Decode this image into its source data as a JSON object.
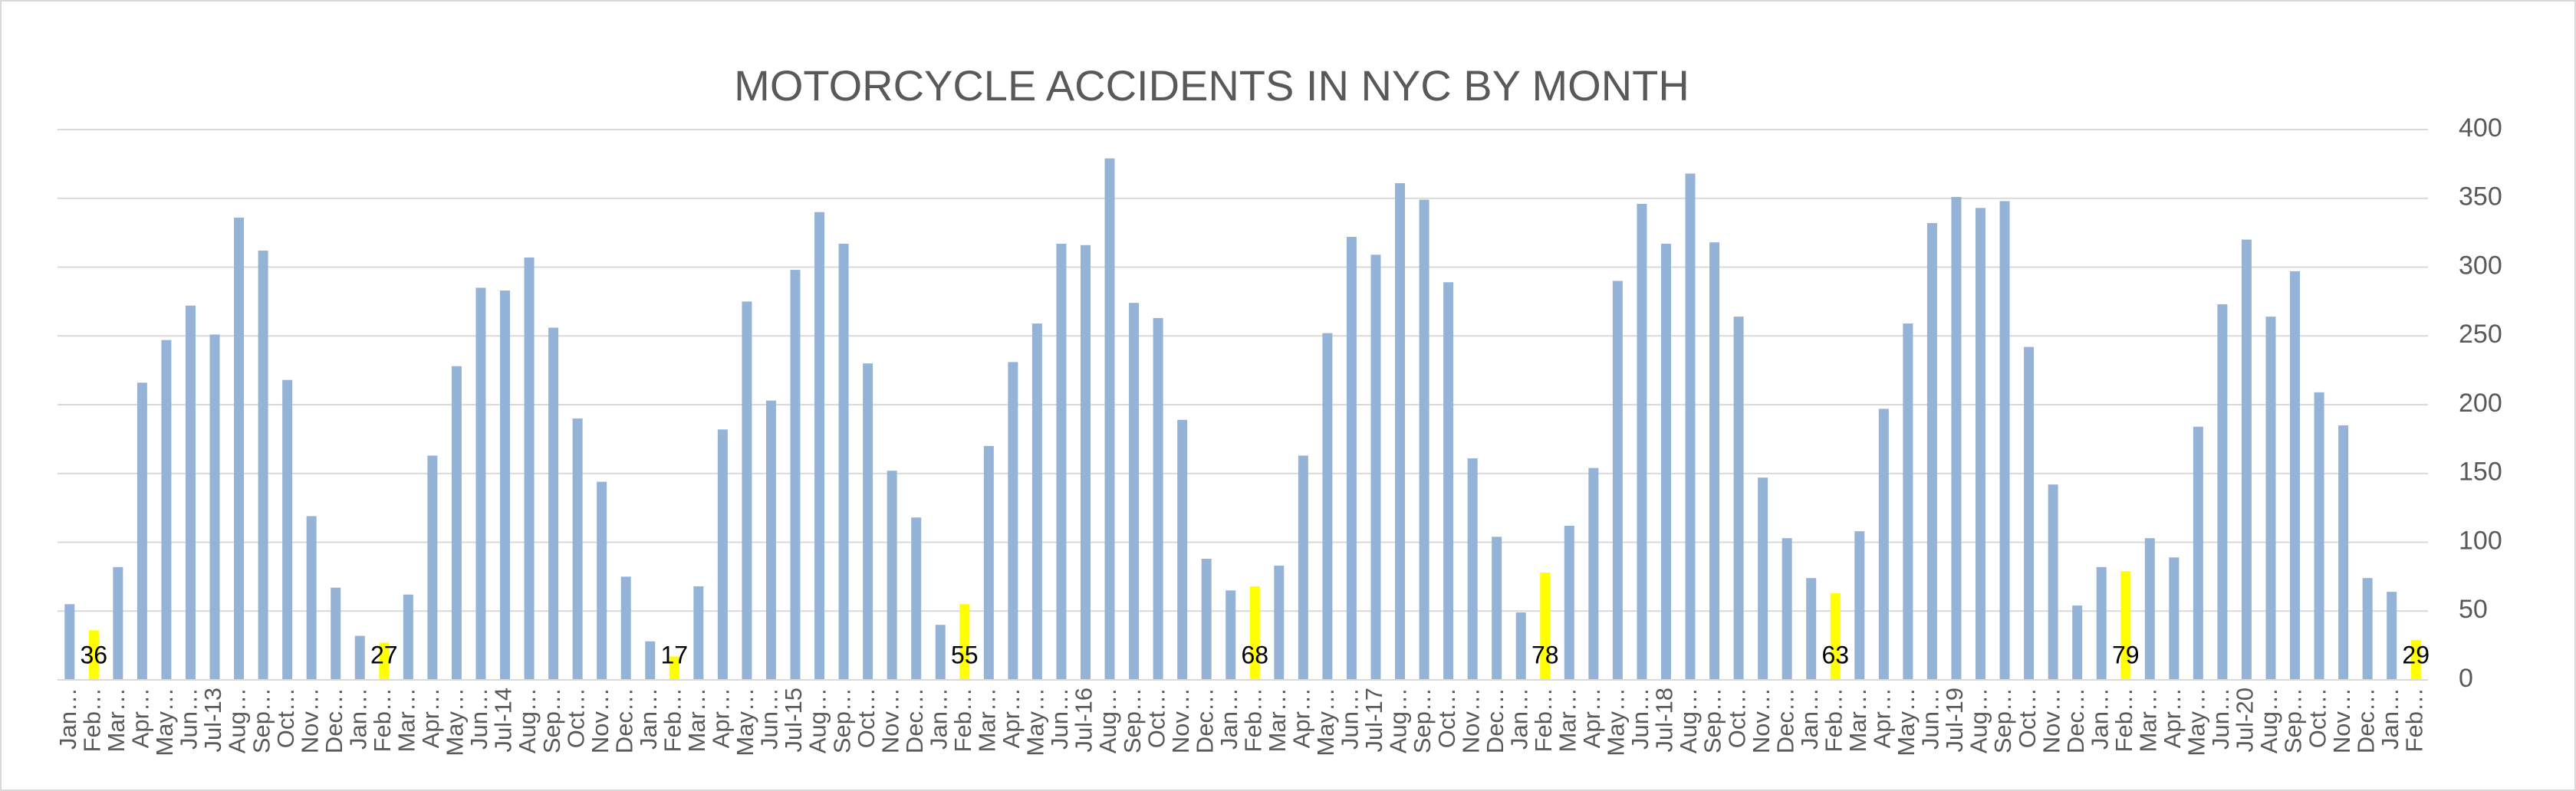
{
  "chart_data": {
    "type": "bar",
    "title": "MOTORCYCLE ACCIDENTS IN NYC BY MONTH",
    "categories": [
      "Jan…",
      "Feb…",
      "Mar…",
      "Apr…",
      "May…",
      "Jun…",
      "Jul-13",
      "Aug…",
      "Sep…",
      "Oct…",
      "Nov…",
      "Dec…",
      "Jan…",
      "Feb…",
      "Mar…",
      "Apr…",
      "May…",
      "Jun…",
      "Jul-14",
      "Aug…",
      "Sep…",
      "Oct…",
      "Nov…",
      "Dec…",
      "Jan…",
      "Feb…",
      "Mar…",
      "Apr…",
      "May…",
      "Jun…",
      "Jul-15",
      "Aug…",
      "Sep…",
      "Oct…",
      "Nov…",
      "Dec…",
      "Jan…",
      "Feb…",
      "Mar…",
      "Apr…",
      "May…",
      "Jun…",
      "Jul-16",
      "Aug…",
      "Sep…",
      "Oct…",
      "Nov…",
      "Dec…",
      "Jan…",
      "Feb…",
      "Mar…",
      "Apr…",
      "May…",
      "Jun…",
      "Jul-17",
      "Aug…",
      "Sep…",
      "Oct…",
      "Nov…",
      "Dec…",
      "Jan…",
      "Feb…",
      "Mar…",
      "Apr…",
      "May…",
      "Jun…",
      "Jul-18",
      "Aug…",
      "Sep…",
      "Oct…",
      "Nov…",
      "Dec…",
      "Jan…",
      "Feb…",
      "Mar…",
      "Apr…",
      "May…",
      "Jun…",
      "Jul-19",
      "Aug…",
      "Sep…",
      "Oct…",
      "Nov…",
      "Dec…",
      "Jan…",
      "Feb…",
      "Mar…",
      "Apr…",
      "May…",
      "Jun…",
      "Jul-20",
      "Aug…",
      "Sep…",
      "Oct…",
      "Nov…",
      "Dec…",
      "Jan…",
      "Feb…"
    ],
    "values": [
      55,
      36,
      82,
      216,
      247,
      272,
      251,
      336,
      312,
      218,
      119,
      67,
      32,
      27,
      62,
      163,
      228,
      285,
      283,
      307,
      256,
      190,
      144,
      75,
      28,
      17,
      68,
      182,
      275,
      203,
      298,
      340,
      317,
      230,
      152,
      118,
      40,
      55,
      170,
      231,
      259,
      317,
      316,
      379,
      274,
      263,
      189,
      88,
      65,
      68,
      83,
      163,
      252,
      322,
      309,
      361,
      349,
      289,
      161,
      104,
      49,
      78,
      112,
      154,
      290,
      346,
      317,
      368,
      318,
      264,
      147,
      103,
      74,
      63,
      108,
      197,
      259,
      332,
      351,
      343,
      348,
      242,
      142,
      54,
      82,
      79,
      103,
      89,
      184,
      273,
      320,
      264,
      297,
      209,
      185,
      74,
      64,
      29
    ],
    "value_labels": [
      null,
      "36",
      null,
      null,
      null,
      null,
      null,
      null,
      null,
      null,
      null,
      null,
      null,
      "27",
      null,
      null,
      null,
      null,
      null,
      null,
      null,
      null,
      null,
      null,
      null,
      "17",
      null,
      null,
      null,
      null,
      null,
      null,
      null,
      null,
      null,
      null,
      null,
      "55",
      null,
      null,
      null,
      null,
      null,
      null,
      null,
      null,
      null,
      null,
      null,
      "68",
      null,
      null,
      null,
      null,
      null,
      null,
      null,
      null,
      null,
      null,
      null,
      "78",
      null,
      null,
      null,
      null,
      null,
      null,
      null,
      null,
      null,
      null,
      null,
      "63",
      null,
      null,
      null,
      null,
      null,
      null,
      null,
      null,
      null,
      null,
      null,
      "79",
      null,
      null,
      null,
      null,
      null,
      null,
      null,
      null,
      null,
      null,
      null,
      "29"
    ],
    "colors": [
      "#95b3d7",
      "#ffff00",
      "#95b3d7",
      "#95b3d7",
      "#95b3d7",
      "#95b3d7",
      "#95b3d7",
      "#95b3d7",
      "#95b3d7",
      "#95b3d7",
      "#95b3d7",
      "#95b3d7",
      "#95b3d7",
      "#ffff00",
      "#95b3d7",
      "#95b3d7",
      "#95b3d7",
      "#95b3d7",
      "#95b3d7",
      "#95b3d7",
      "#95b3d7",
      "#95b3d7",
      "#95b3d7",
      "#95b3d7",
      "#95b3d7",
      "#ffff00",
      "#95b3d7",
      "#95b3d7",
      "#95b3d7",
      "#95b3d7",
      "#95b3d7",
      "#95b3d7",
      "#95b3d7",
      "#95b3d7",
      "#95b3d7",
      "#95b3d7",
      "#95b3d7",
      "#ffff00",
      "#95b3d7",
      "#95b3d7",
      "#95b3d7",
      "#95b3d7",
      "#95b3d7",
      "#95b3d7",
      "#95b3d7",
      "#95b3d7",
      "#95b3d7",
      "#95b3d7",
      "#95b3d7",
      "#ffff00",
      "#95b3d7",
      "#95b3d7",
      "#95b3d7",
      "#95b3d7",
      "#95b3d7",
      "#95b3d7",
      "#95b3d7",
      "#95b3d7",
      "#95b3d7",
      "#95b3d7",
      "#95b3d7",
      "#ffff00",
      "#95b3d7",
      "#95b3d7",
      "#95b3d7",
      "#95b3d7",
      "#95b3d7",
      "#95b3d7",
      "#95b3d7",
      "#95b3d7",
      "#95b3d7",
      "#95b3d7",
      "#95b3d7",
      "#ffff00",
      "#95b3d7",
      "#95b3d7",
      "#95b3d7",
      "#95b3d7",
      "#95b3d7",
      "#95b3d7",
      "#95b3d7",
      "#95b3d7",
      "#95b3d7",
      "#95b3d7",
      "#95b3d7",
      "#ffff00",
      "#95b3d7",
      "#95b3d7",
      "#95b3d7",
      "#95b3d7",
      "#95b3d7",
      "#95b3d7",
      "#95b3d7",
      "#95b3d7",
      "#95b3d7",
      "#95b3d7",
      "#95b3d7",
      "#ffff00"
    ],
    "ylim": [
      0,
      400
    ],
    "yticks": [
      0,
      50,
      100,
      150,
      200,
      250,
      300,
      350,
      400
    ],
    "grid": true,
    "y_axis_side": "right"
  }
}
